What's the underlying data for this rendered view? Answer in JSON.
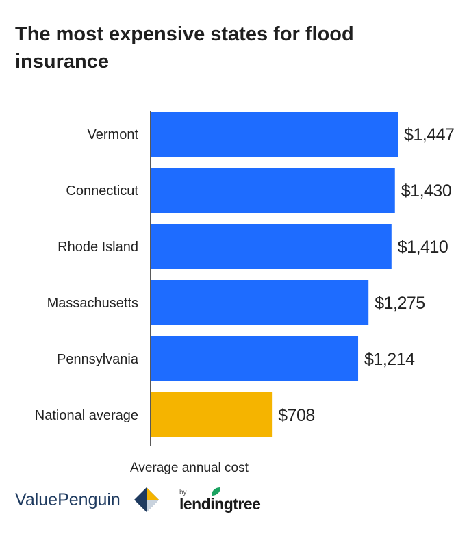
{
  "chart_data": {
    "type": "bar",
    "orientation": "horizontal",
    "title": "The most expensive states for flood insurance",
    "xlabel": "Average annual cost",
    "ylabel": "",
    "categories": [
      "Vermont",
      "Connecticut",
      "Rhode Island",
      "Massachusetts",
      "Pennsylvania",
      "National average"
    ],
    "values": [
      1447,
      1430,
      1410,
      1275,
      1214,
      708
    ],
    "value_labels": [
      "$1,447",
      "$1,430",
      "$1,410",
      "$1,275",
      "$1,214",
      "$708"
    ],
    "bar_colors": [
      "#1e6cff",
      "#1e6cff",
      "#1e6cff",
      "#1e6cff",
      "#1e6cff",
      "#f5b400"
    ],
    "xlim": [
      0,
      1447
    ],
    "grid": false,
    "legend": "none"
  },
  "branding": {
    "valuepenguin": "ValuePenguin",
    "by": "by",
    "lendingtree": "lendingtree"
  }
}
